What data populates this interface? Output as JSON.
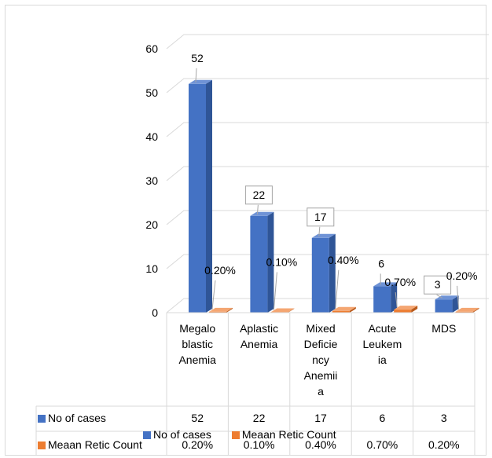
{
  "colors": {
    "series1": "#4472c4",
    "series2": "#ed7d31",
    "grid": "#d9d9d9",
    "callout_border": "#a6a6a6"
  },
  "chart_data": {
    "type": "bar",
    "categories": [
      "Megaloblastic Anemia",
      "Aplastic Anemia",
      "Mixed Deficiency Anemiia",
      "Acute Leukemia",
      "MDS"
    ],
    "category_display_lines": [
      [
        "Megalo",
        "blastic",
        "Anemia"
      ],
      [
        "Aplastic",
        "Anemia"
      ],
      [
        "Mixed",
        "Deficie",
        "ncy",
        "Anemii",
        "a"
      ],
      [
        "Acute",
        "Leukem",
        "ia"
      ],
      [
        "MDS"
      ]
    ],
    "series": [
      {
        "name": "No of cases",
        "values": [
          52,
          22,
          17,
          6,
          3
        ],
        "labels": [
          "52",
          "22",
          "17",
          "6",
          "3"
        ]
      },
      {
        "name": "Meaan Retic Count",
        "values": [
          0.2,
          0.1,
          0.4,
          0.7,
          0.2
        ],
        "labels": [
          "0.20%",
          "0.10%",
          "0.40%",
          "0.70%",
          "0.20%"
        ]
      }
    ],
    "ylim": [
      0,
      60
    ],
    "yticks": [
      0,
      10,
      20,
      30,
      40,
      50,
      60
    ],
    "grid": true,
    "legend_position": "bottom",
    "data_table": true,
    "style": "3d-clustered-column"
  }
}
